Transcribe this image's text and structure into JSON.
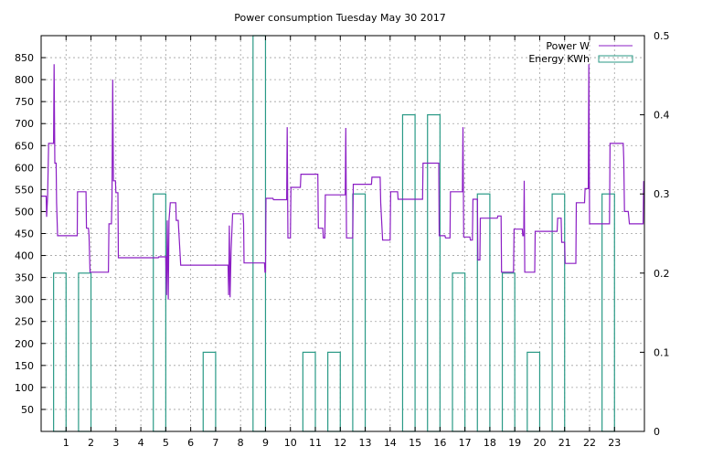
{
  "chart_data": {
    "type": "line",
    "title": "Power consumption Tuesday May 30 2017",
    "xlabel": "",
    "ylabel": "",
    "y2label": "",
    "xlim": [
      0,
      24.2
    ],
    "xticks": [
      1,
      2,
      3,
      4,
      5,
      6,
      7,
      8,
      9,
      10,
      11,
      12,
      13,
      14,
      15,
      16,
      17,
      18,
      19,
      20,
      21,
      22,
      23
    ],
    "ylim": [
      0,
      900
    ],
    "yticks": [
      50,
      100,
      150,
      200,
      250,
      300,
      350,
      400,
      450,
      500,
      550,
      600,
      650,
      700,
      750,
      800,
      850
    ],
    "y2lim": [
      0,
      0.5
    ],
    "y2ticks": [
      0,
      0.1,
      0.2,
      0.3,
      0.4,
      0.5
    ],
    "grid": true,
    "legend_position": "top-right",
    "colors": {
      "power": "#8b1ec4",
      "energy": "#2a9a86",
      "grid": "#a0a0a0"
    },
    "series": [
      {
        "name": "Power W",
        "type": "step-line",
        "axis": "y1",
        "points": [
          [
            0.0,
            535
          ],
          [
            0.2,
            535
          ],
          [
            0.22,
            488
          ],
          [
            0.26,
            535
          ],
          [
            0.3,
            655
          ],
          [
            0.5,
            655
          ],
          [
            0.52,
            835
          ],
          [
            0.55,
            610
          ],
          [
            0.6,
            610
          ],
          [
            0.62,
            520
          ],
          [
            0.66,
            445
          ],
          [
            1.45,
            445
          ],
          [
            1.46,
            545
          ],
          [
            1.8,
            545
          ],
          [
            1.82,
            462
          ],
          [
            1.9,
            462
          ],
          [
            1.92,
            445
          ],
          [
            1.96,
            362
          ],
          [
            2.7,
            362
          ],
          [
            2.72,
            472
          ],
          [
            2.82,
            472
          ],
          [
            2.84,
            530
          ],
          [
            2.87,
            800
          ],
          [
            2.9,
            570
          ],
          [
            2.98,
            570
          ],
          [
            3.0,
            543
          ],
          [
            3.08,
            543
          ],
          [
            3.1,
            395
          ],
          [
            4.7,
            395
          ],
          [
            4.72,
            397
          ],
          [
            5.0,
            397
          ],
          [
            5.03,
            310
          ],
          [
            5.06,
            480
          ],
          [
            5.1,
            300
          ],
          [
            5.13,
            480
          ],
          [
            5.18,
            520
          ],
          [
            5.4,
            520
          ],
          [
            5.42,
            480
          ],
          [
            5.5,
            480
          ],
          [
            5.52,
            460
          ],
          [
            5.6,
            378
          ],
          [
            7.5,
            378
          ],
          [
            7.52,
            310
          ],
          [
            7.55,
            468
          ],
          [
            7.58,
            305
          ],
          [
            7.62,
            410
          ],
          [
            7.68,
            495
          ],
          [
            8.1,
            495
          ],
          [
            8.12,
            473
          ],
          [
            8.14,
            383
          ],
          [
            8.96,
            383
          ],
          [
            8.98,
            362
          ],
          [
            9.0,
            362
          ],
          [
            9.02,
            530
          ],
          [
            9.3,
            530
          ],
          [
            9.32,
            527
          ],
          [
            9.85,
            527
          ],
          [
            9.87,
            692
          ],
          [
            9.9,
            440
          ],
          [
            10.0,
            440
          ],
          [
            10.02,
            555
          ],
          [
            10.4,
            555
          ],
          [
            10.42,
            585
          ],
          [
            11.1,
            585
          ],
          [
            11.12,
            462
          ],
          [
            11.3,
            462
          ],
          [
            11.32,
            440
          ],
          [
            11.38,
            440
          ],
          [
            11.4,
            538
          ],
          [
            12.2,
            538
          ],
          [
            12.22,
            690
          ],
          [
            12.25,
            440
          ],
          [
            12.5,
            440
          ],
          [
            12.52,
            562
          ],
          [
            13.25,
            562
          ],
          [
            13.27,
            578
          ],
          [
            13.6,
            578
          ],
          [
            13.62,
            520
          ],
          [
            13.7,
            435
          ],
          [
            14.0,
            435
          ],
          [
            14.02,
            545
          ],
          [
            14.3,
            545
          ],
          [
            14.32,
            528
          ],
          [
            15.3,
            528
          ],
          [
            15.32,
            610
          ],
          [
            15.95,
            610
          ],
          [
            15.97,
            445
          ],
          [
            16.2,
            445
          ],
          [
            16.22,
            440
          ],
          [
            16.4,
            440
          ],
          [
            16.42,
            545
          ],
          [
            16.9,
            545
          ],
          [
            16.92,
            692
          ],
          [
            16.95,
            442
          ],
          [
            17.2,
            442
          ],
          [
            17.22,
            435
          ],
          [
            17.3,
            435
          ],
          [
            17.32,
            528
          ],
          [
            17.5,
            528
          ],
          [
            17.52,
            390
          ],
          [
            17.6,
            390
          ],
          [
            17.62,
            485
          ],
          [
            18.3,
            485
          ],
          [
            18.32,
            490
          ],
          [
            18.45,
            490
          ],
          [
            18.47,
            362
          ],
          [
            18.95,
            362
          ],
          [
            18.97,
            460
          ],
          [
            19.3,
            460
          ],
          [
            19.32,
            445
          ],
          [
            19.36,
            445
          ],
          [
            19.38,
            570
          ],
          [
            19.4,
            362
          ],
          [
            19.8,
            362
          ],
          [
            19.82,
            455
          ],
          [
            20.7,
            455
          ],
          [
            20.72,
            485
          ],
          [
            20.86,
            485
          ],
          [
            20.88,
            430
          ],
          [
            21.0,
            430
          ],
          [
            21.02,
            382
          ],
          [
            21.45,
            382
          ],
          [
            21.47,
            520
          ],
          [
            21.8,
            520
          ],
          [
            21.82,
            552
          ],
          [
            21.95,
            552
          ],
          [
            21.97,
            835
          ],
          [
            22.0,
            472
          ],
          [
            22.8,
            472
          ],
          [
            22.82,
            655
          ],
          [
            23.35,
            655
          ],
          [
            23.37,
            620
          ],
          [
            23.4,
            500
          ],
          [
            23.55,
            500
          ],
          [
            23.6,
            472
          ],
          [
            24.15,
            472
          ],
          [
            24.17,
            568
          ],
          [
            24.2,
            568
          ]
        ]
      },
      {
        "name": "Energy KWh",
        "type": "bars",
        "axis": "y2",
        "bars": [
          [
            0.5,
            1.0,
            0.2
          ],
          [
            1.5,
            2.0,
            0.2
          ],
          [
            4.5,
            5.0,
            0.3
          ],
          [
            6.5,
            7.0,
            0.1
          ],
          [
            8.5,
            9.0,
            0.5
          ],
          [
            10.5,
            11.0,
            0.1
          ],
          [
            11.5,
            12.0,
            0.1
          ],
          [
            12.5,
            13.0,
            0.3
          ],
          [
            14.5,
            15.0,
            0.4
          ],
          [
            15.5,
            16.0,
            0.4
          ],
          [
            16.5,
            17.0,
            0.2
          ],
          [
            17.5,
            18.0,
            0.3
          ],
          [
            18.5,
            19.0,
            0.2
          ],
          [
            19.5,
            20.0,
            0.1
          ],
          [
            20.5,
            21.0,
            0.3
          ],
          [
            22.5,
            23.0,
            0.3
          ]
        ]
      }
    ]
  }
}
